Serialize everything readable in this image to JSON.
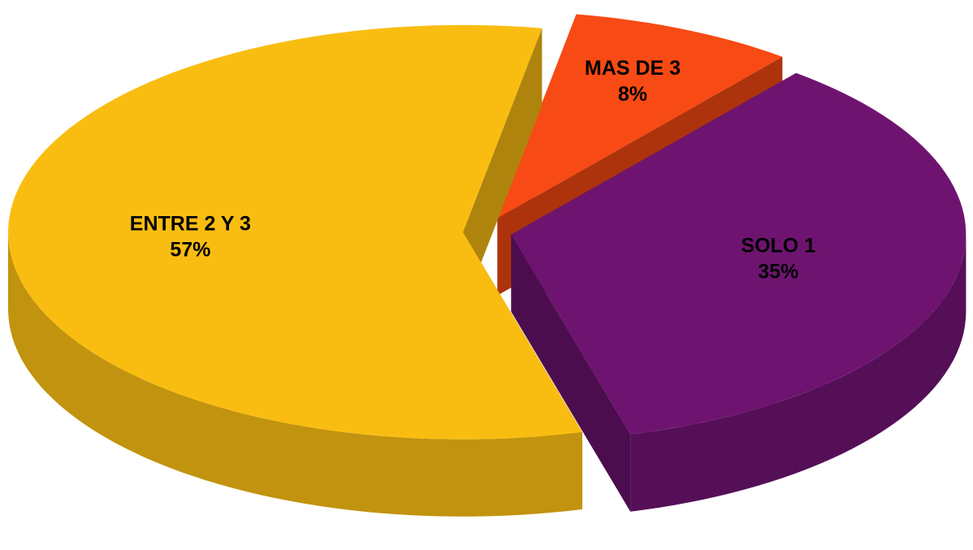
{
  "chart_data": {
    "type": "pie",
    "categories": [
      "MAS DE 3",
      "SOLO 1",
      "ENTRE 2 Y 3"
    ],
    "values": [
      8,
      35,
      57
    ],
    "value_labels": [
      "8%",
      "35%",
      "57%"
    ],
    "colors": [
      "#f84a14",
      "#6e1470",
      "#f9bd12"
    ]
  }
}
